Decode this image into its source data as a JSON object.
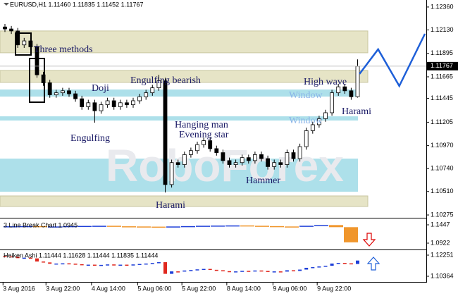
{
  "chart_data": {
    "type": "candlestick",
    "header": "EURUSD,H1  1.11460 1.11835 1.11452 1.11767",
    "watermark": "RoboForex",
    "annotations": [
      "Three methods",
      "Doji",
      "Engulfing bearish",
      "Engulfing",
      "Hanging man",
      "Evening star",
      "Hammer",
      "Harami",
      "High wave",
      "Window",
      "Window",
      "Harami"
    ],
    "ylim": [
      1.10254,
      1.12409
    ],
    "yticks": [
      {
        "value": 1.1236,
        "label": "1.12360"
      },
      {
        "value": 1.1213,
        "label": "1.12130"
      },
      1.11895,
      {
        "value": 1.1166,
        "label": "1.11665"
      },
      {
        "value": 1.11445,
        "label": "1.11445"
      },
      {
        "value": 1.11205,
        "label": "1.11205"
      },
      {
        "value": 1.1097,
        "label": "1.10970"
      },
      {
        "value": 1.1074,
        "label": "1.10740"
      },
      {
        "value": 1.1051,
        "label": "1.10510"
      },
      {
        "value": 1.10275,
        "label": "1.10275"
      }
    ],
    "xticks": [
      {
        "value": -0.3,
        "label": "3 Aug 2016"
      },
      {
        "value": 6.4,
        "label": "3 Aug 22:00"
      },
      {
        "value": 13.5,
        "label": "4 Aug 14:00"
      },
      {
        "value": 20.7,
        "label": "5 Aug 06:00"
      },
      {
        "value": 27.6,
        "label": "5 Aug 22:00"
      },
      {
        "value": 34.6,
        "label": "8 Aug 14:00"
      },
      {
        "value": 41.8,
        "label": "9 Aug 06:00"
      },
      {
        "value": 48.7,
        "label": "9 Aug 22:00"
      }
    ],
    "zones": [
      {
        "from": 1.11901,
        "to": 1.1212,
        "color": "#e6e4c6"
      },
      {
        "from": 1.11604,
        "to": 1.11724,
        "color": "#e6e4c6"
      },
      {
        "from": 1.1036,
        "to": 1.10466,
        "color": "#e6e4c6"
      },
      {
        "from": 1.11462,
        "to": 1.11533,
        "color": "#ade0ea"
      },
      {
        "from": 1.11222,
        "to": 1.11264,
        "color": "#ade0ea"
      },
      {
        "from": 1.10508,
        "to": 1.1084,
        "color": "#ade0ea"
      }
    ],
    "ohlc": [
      [
        1.1216,
        1.1219,
        1.1211,
        1.1214
      ],
      [
        1.1214,
        1.1217,
        1.1209,
        1.1212
      ],
      [
        1.1212,
        1.1215,
        1.1195,
        1.1198
      ],
      [
        1.1198,
        1.1205,
        1.1195,
        1.1202
      ],
      [
        1.1202,
        1.1205,
        1.1193,
        1.1196
      ],
      [
        1.1196,
        1.1199,
        1.1165,
        1.1168
      ],
      [
        1.1168,
        1.1171,
        1.1157,
        1.116
      ],
      [
        1.116,
        1.1163,
        1.1145,
        1.1148
      ],
      [
        1.1148,
        1.1153,
        1.1145,
        1.115
      ],
      [
        1.115,
        1.1155,
        1.1147,
        1.1152
      ],
      [
        1.1152,
        1.1155,
        1.1146,
        1.1149
      ],
      [
        1.1149,
        1.1152,
        1.1141,
        1.1144
      ],
      [
        1.1144,
        1.1147,
        1.1133,
        1.1136
      ],
      [
        1.1136,
        1.1143,
        1.1133,
        1.114
      ],
      [
        1.114,
        1.1143,
        1.112,
        1.1132
      ],
      [
        1.1132,
        1.1141,
        1.1129,
        1.1138
      ],
      [
        1.1138,
        1.1145,
        1.1135,
        1.1142
      ],
      [
        1.1142,
        1.1145,
        1.1133,
        1.1136
      ],
      [
        1.1136,
        1.1143,
        1.1133,
        1.114
      ],
      [
        1.114,
        1.1143,
        1.1135,
        1.1138
      ],
      [
        1.1138,
        1.1145,
        1.1135,
        1.1142
      ],
      [
        1.1142,
        1.1149,
        1.1139,
        1.1146
      ],
      [
        1.1146,
        1.1153,
        1.1143,
        1.115
      ],
      [
        1.115,
        1.1158,
        1.1147,
        1.1155
      ],
      [
        1.1155,
        1.1168,
        1.1152,
        1.1162
      ],
      [
        1.1162,
        1.1165,
        1.105,
        1.1058
      ],
      [
        1.1058,
        1.1083,
        1.1055,
        1.108
      ],
      [
        1.108,
        1.1083,
        1.1075,
        1.1078
      ],
      [
        1.1078,
        1.1091,
        1.1075,
        1.1088
      ],
      [
        1.1088,
        1.1095,
        1.1085,
        1.1092
      ],
      [
        1.1092,
        1.1101,
        1.1089,
        1.1098
      ],
      [
        1.1098,
        1.1105,
        1.1095,
        1.1102
      ],
      [
        1.1102,
        1.1105,
        1.1091,
        1.1094
      ],
      [
        1.1094,
        1.1097,
        1.1087,
        1.109
      ],
      [
        1.109,
        1.1093,
        1.1079,
        1.1082
      ],
      [
        1.1082,
        1.1085,
        1.1075,
        1.1078
      ],
      [
        1.1078,
        1.1083,
        1.1075,
        1.108
      ],
      [
        1.108,
        1.1088,
        1.1077,
        1.1085
      ],
      [
        1.1085,
        1.1088,
        1.1079,
        1.1082
      ],
      [
        1.1082,
        1.1091,
        1.1079,
        1.1088
      ],
      [
        1.1088,
        1.1091,
        1.1081,
        1.1084
      ],
      [
        1.1084,
        1.1087,
        1.1073,
        1.1076
      ],
      [
        1.1076,
        1.1083,
        1.1073,
        1.108
      ],
      [
        1.108,
        1.1083,
        1.1075,
        1.1078
      ],
      [
        1.1078,
        1.1093,
        1.1075,
        1.109
      ],
      [
        1.109,
        1.1093,
        1.1081,
        1.1084
      ],
      [
        1.1084,
        1.1099,
        1.1081,
        1.1096
      ],
      [
        1.1096,
        1.1115,
        1.1093,
        1.1112
      ],
      [
        1.1112,
        1.1121,
        1.1109,
        1.1118
      ],
      [
        1.1118,
        1.1127,
        1.1115,
        1.1124
      ],
      [
        1.1124,
        1.1133,
        1.1121,
        1.113
      ],
      [
        1.113,
        1.1153,
        1.1127,
        1.115
      ],
      [
        1.115,
        1.1159,
        1.1147,
        1.1156
      ],
      [
        1.1156,
        1.1159,
        1.1149,
        1.1152
      ],
      [
        1.1152,
        1.1155,
        1.1143,
        1.1146
      ],
      [
        1.1146,
        1.11835,
        1.11452,
        1.11767
      ]
    ],
    "forecast": {
      "color": "#1e5fd8",
      "x": [
        55.3,
        58.2,
        61.5,
        65.5
      ],
      "values": [
        1.11689,
        1.11936,
        1.11568,
        1.12091
      ]
    },
    "line_break": {
      "label": "3 Line Break Chart 1.0945",
      "ylim": [
        1.076,
        1.1609
      ],
      "yticks": [
        1.1447,
        1.0922
      ],
      "values": [
        1.1405,
        1.141,
        1.1395,
        1.14,
        1.141,
        1.1415,
        1.142,
        1.1405,
        1.14,
        1.1395,
        1.139,
        1.14,
        1.141,
        1.142,
        1.1425,
        1.143,
        1.142,
        1.141,
        1.14,
        1.1395,
        1.142,
        1.144,
        1.138,
        1.0945
      ],
      "up_color": "#1e3fd8",
      "down_color": "#f0962c"
    },
    "heiken_ashi": {
      "label": "Heiken Ashi 1.11444 1.11628 1.11444 1.11835 1.11444",
      "ylim": [
        1.09861,
        1.12628
      ],
      "yticks": [
        1.12251,
        1.10364
      ],
      "up_color": "#1e3fd8",
      "down_color": "#e0281e"
    }
  }
}
